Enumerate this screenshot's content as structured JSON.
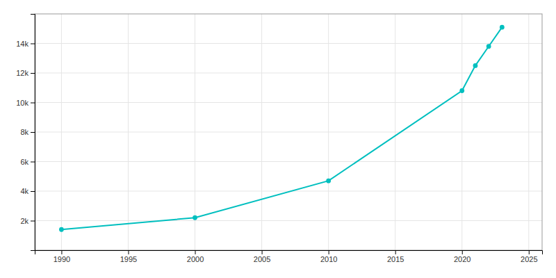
{
  "chart_data": {
    "type": "line",
    "x": [
      1990,
      2000,
      2010,
      2020,
      2021,
      2022,
      2023
    ],
    "values": [
      1400,
      2200,
      4700,
      10800,
      12500,
      13800,
      15100
    ],
    "color": "#00BFBF",
    "marker": "circle",
    "xlim": [
      1988,
      2026
    ],
    "ylim": [
      0,
      16000
    ],
    "xticks": [
      1990,
      1995,
      2000,
      2005,
      2010,
      2015,
      2020,
      2025
    ],
    "yticks": [
      {
        "value": 2000,
        "label": "2k"
      },
      {
        "value": 4000,
        "label": "4k"
      },
      {
        "value": 6000,
        "label": "6k"
      },
      {
        "value": 8000,
        "label": "8k"
      },
      {
        "value": 10000,
        "label": "10k"
      },
      {
        "value": 12000,
        "label": "12k"
      },
      {
        "value": 14000,
        "label": "14k"
      }
    ],
    "grid": true
  }
}
